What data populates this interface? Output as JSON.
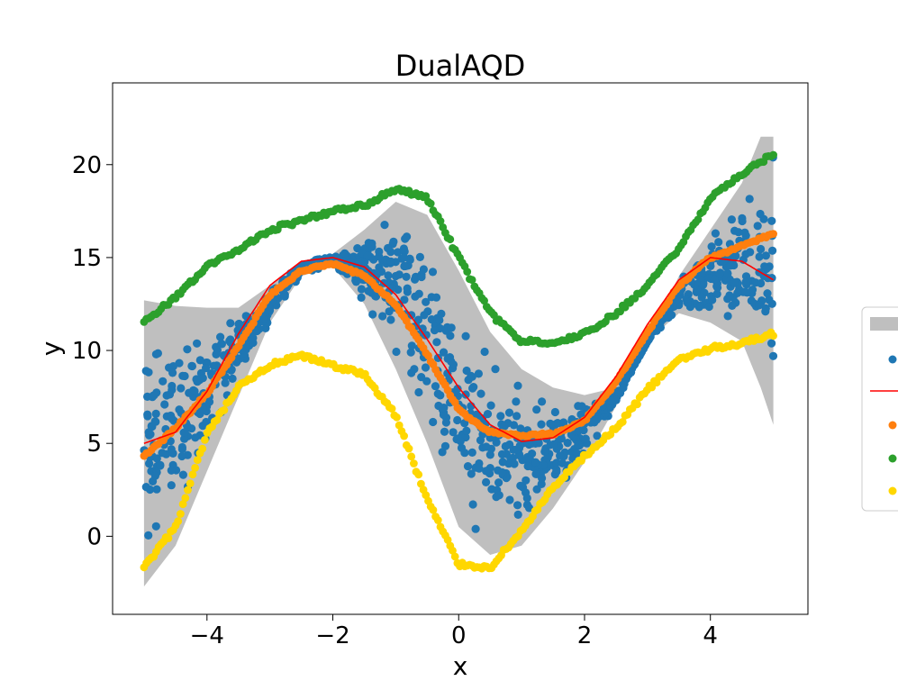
{
  "chart_data": {
    "type": "scatter",
    "title": "DualAQD",
    "xlabel": "x",
    "ylabel": "y",
    "xlim": [
      -5.5,
      5.55
    ],
    "ylim": [
      -4.2,
      24.4
    ],
    "xticks": [
      -4,
      -2,
      0,
      2,
      4
    ],
    "xtick_labels": [
      "−4",
      "−2",
      "0",
      "2",
      "4"
    ],
    "yticks": [
      0,
      5,
      10,
      15,
      20
    ],
    "ytick_labels": [
      "0",
      "5",
      "10",
      "15",
      "20"
    ],
    "grid": false,
    "legend_position": "outside right (clipped)",
    "colors": {
      "band": "#bfbfbf",
      "samples": "#1f77b4",
      "true_function": "#ff0000",
      "prediction": "#ff7f0e",
      "upper_bound": "#2ca02c",
      "lower_bound": "#ffd700"
    },
    "band": {
      "x": [
        -5,
        -4.5,
        -4,
        -3.5,
        -3,
        -2.5,
        -2,
        -1.5,
        -1,
        -0.5,
        0,
        0.5,
        1,
        1.5,
        2,
        2.5,
        3,
        3.5,
        4,
        4.5,
        4.8,
        5
      ],
      "upper": [
        12.7,
        12.4,
        12.3,
        12.3,
        13.5,
        14.8,
        15.2,
        16.5,
        18.0,
        17.3,
        14.3,
        11.0,
        9.0,
        8.0,
        7.6,
        8.0,
        10.5,
        14.0,
        16.5,
        19.0,
        21.5,
        21.5
      ],
      "lower": [
        -2.7,
        -0.5,
        3.5,
        7.5,
        11.5,
        14.0,
        14.5,
        12.5,
        9.0,
        5.0,
        0.5,
        -1.0,
        -0.5,
        1.5,
        4.0,
        7.0,
        10.5,
        12.0,
        11.5,
        10.5,
        8.0,
        6.0
      ]
    },
    "series": [
      {
        "x": [
          -5,
          -4.5,
          -4,
          -3.5,
          -3,
          -2.5,
          -2,
          -1.5,
          -1,
          -0.5,
          0,
          0.5,
          1,
          1.5,
          2,
          2.5,
          3,
          3.5,
          4,
          4.5,
          5
        ],
        "y": [
          5.0,
          5.6,
          7.8,
          10.9,
          13.5,
          14.8,
          15.0,
          14.5,
          13.0,
          10.6,
          8.0,
          6.0,
          5.1,
          5.3,
          6.4,
          8.6,
          11.4,
          13.8,
          15.0,
          14.8,
          13.8
        ]
      },
      {
        "x": [
          -5,
          -4.5,
          -4,
          -3.5,
          -3,
          -2.5,
          -2,
          -1.5,
          -1,
          -0.5,
          0,
          0.5,
          1,
          1.5,
          2,
          2.5,
          3,
          3.5,
          4,
          4.5,
          5
        ],
        "y": [
          4.3,
          5.8,
          7.7,
          10.2,
          13.0,
          14.3,
          14.7,
          14.0,
          12.5,
          9.8,
          6.8,
          5.6,
          5.4,
          5.5,
          6.2,
          8.3,
          11.0,
          13.5,
          15.0,
          15.6,
          16.3
        ]
      },
      {
        "x": [
          -5,
          -4.5,
          -4,
          -3.5,
          -3,
          -2.5,
          -2,
          -1.5,
          -1,
          -0.5,
          0,
          0.5,
          1,
          1.5,
          2,
          2.5,
          3,
          3.5,
          4,
          4.5,
          5
        ],
        "y": [
          11.5,
          12.9,
          14.5,
          15.4,
          16.5,
          17.0,
          17.5,
          17.8,
          18.7,
          18.2,
          15.0,
          12.0,
          10.5,
          10.4,
          10.9,
          12.0,
          13.5,
          15.5,
          18.2,
          19.5,
          20.6
        ]
      },
      {
        "x": [
          -5,
          -4.5,
          -4,
          -3.5,
          -3,
          -2.5,
          -2,
          -1.5,
          -1,
          -0.5,
          0,
          0.5,
          1,
          1.5,
          2,
          2.5,
          3,
          3.5,
          4,
          4.5,
          5
        ],
        "y": [
          -1.7,
          0.5,
          5.5,
          8.0,
          9.2,
          9.7,
          9.2,
          8.7,
          6.5,
          2.0,
          -1.5,
          -1.7,
          0.3,
          2.6,
          4.3,
          5.8,
          7.9,
          9.5,
          10.1,
          10.4,
          10.9
        ]
      }
    ]
  }
}
